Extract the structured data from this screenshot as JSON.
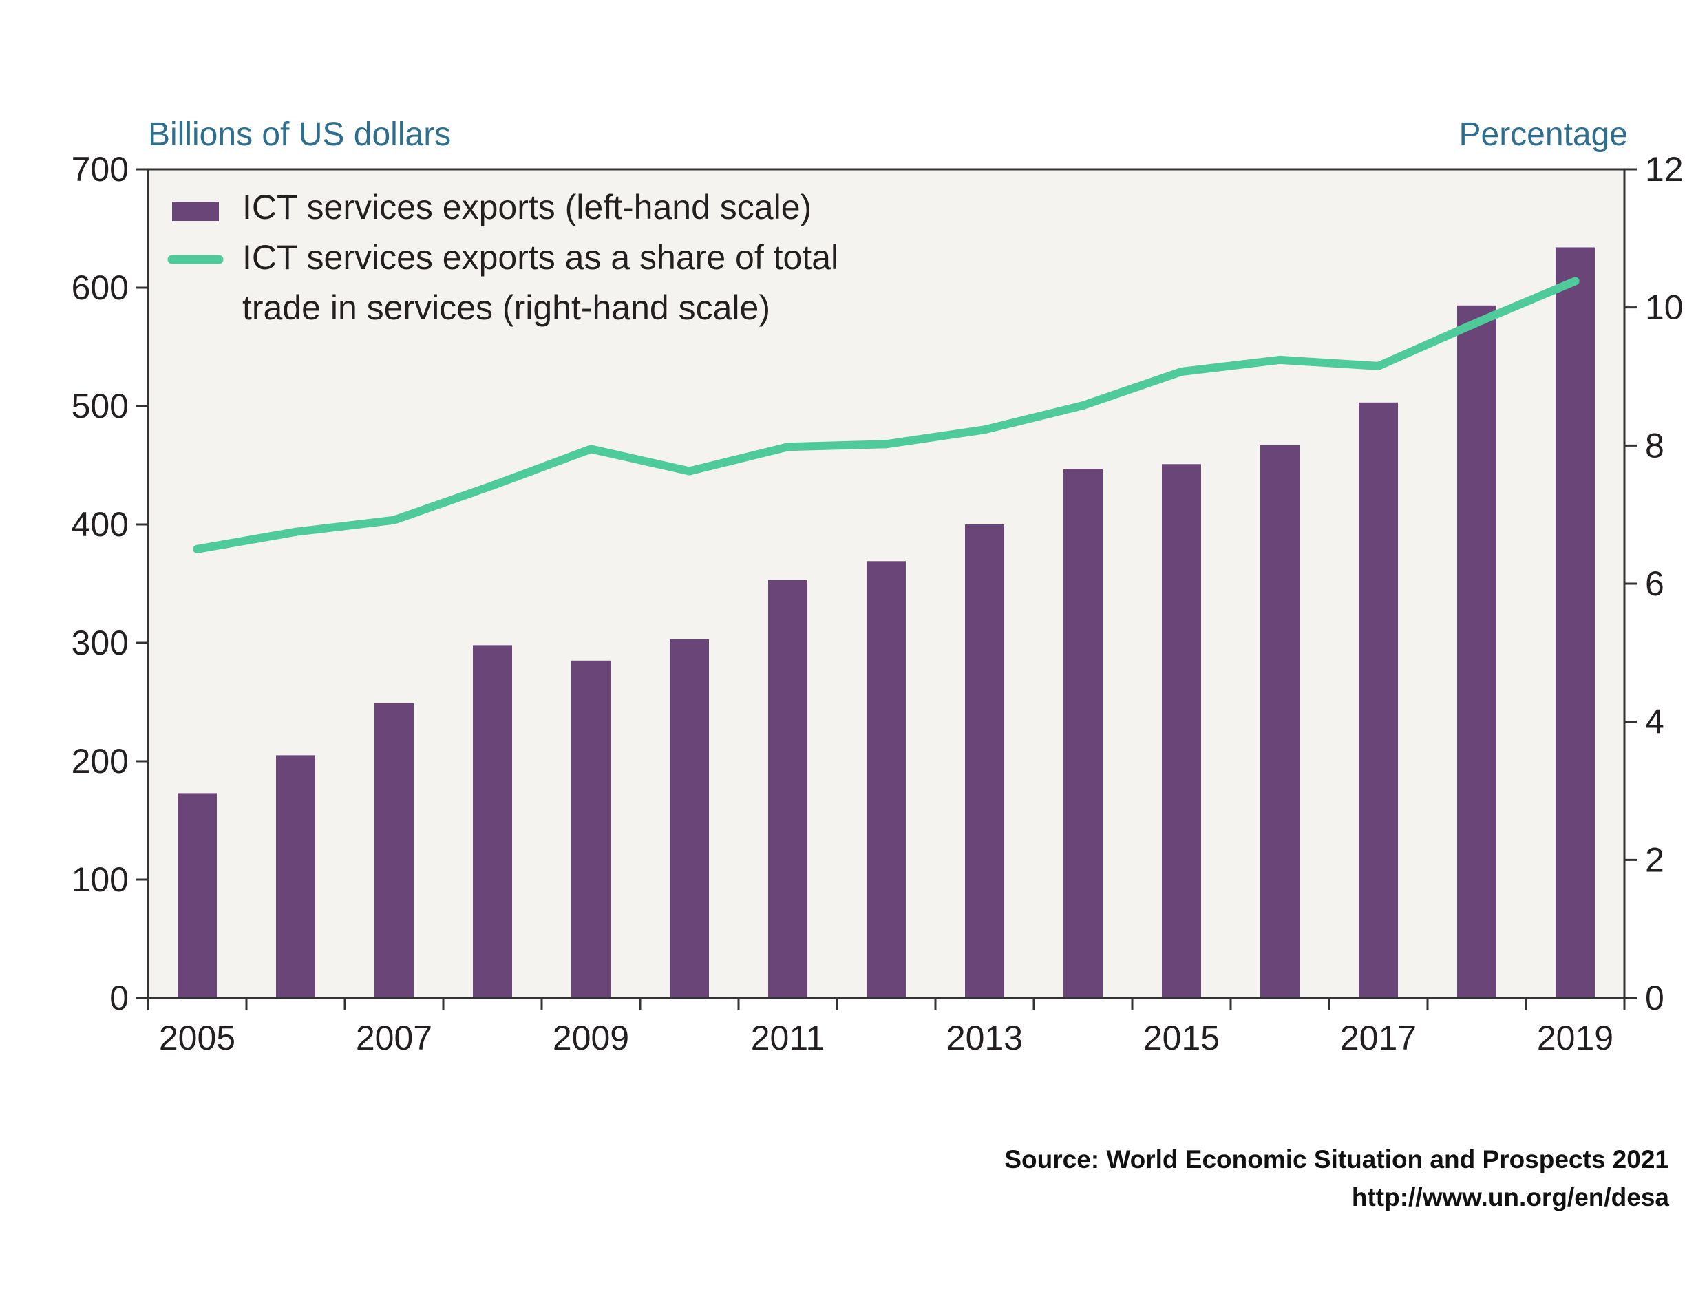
{
  "chart_data": {
    "type": "bar",
    "categories": [
      "2005",
      "2006",
      "2007",
      "2008",
      "2009",
      "2010",
      "2011",
      "2012",
      "2013",
      "2014",
      "2015",
      "2016",
      "2017",
      "2018",
      "2019"
    ],
    "x_tick_labels": [
      "2005",
      "2007",
      "2009",
      "2011",
      "2013",
      "2015",
      "2017",
      "2019"
    ],
    "left_axis": {
      "title": "Billions of US dollars",
      "ylim": [
        0,
        700
      ],
      "ticks": [
        "0",
        "100",
        "200",
        "300",
        "400",
        "500",
        "600",
        "700"
      ]
    },
    "right_axis": {
      "title": "Percentage",
      "ylim": [
        0,
        12
      ],
      "ticks": [
        "0",
        "2",
        "4",
        "6",
        "8",
        "10",
        "12"
      ]
    },
    "series": [
      {
        "name": "ICT services exports (left-hand scale)",
        "type": "bar",
        "axis": "left",
        "color": "#6a4578",
        "values": [
          173,
          205,
          249,
          298,
          285,
          303,
          353,
          369,
          400,
          447,
          451,
          467,
          503,
          585,
          634
        ]
      },
      {
        "name_lines": [
          "ICT services exports as a share of total",
          "trade in services (right-hand scale)"
        ],
        "type": "line",
        "axis": "right",
        "color": "#4fcb9b",
        "values": [
          6.5,
          6.75,
          6.92,
          7.42,
          7.95,
          7.63,
          7.98,
          8.02,
          8.23,
          8.58,
          9.07,
          9.24,
          9.15,
          9.78,
          10.38
        ]
      }
    ],
    "legend_position": "top-left",
    "plot_background": "#f5f3ef",
    "grid": false
  },
  "source": {
    "line1": "Source:  World Economic Situation and Prospects 2021",
    "line2": "http://www.un.org/en/desa"
  }
}
